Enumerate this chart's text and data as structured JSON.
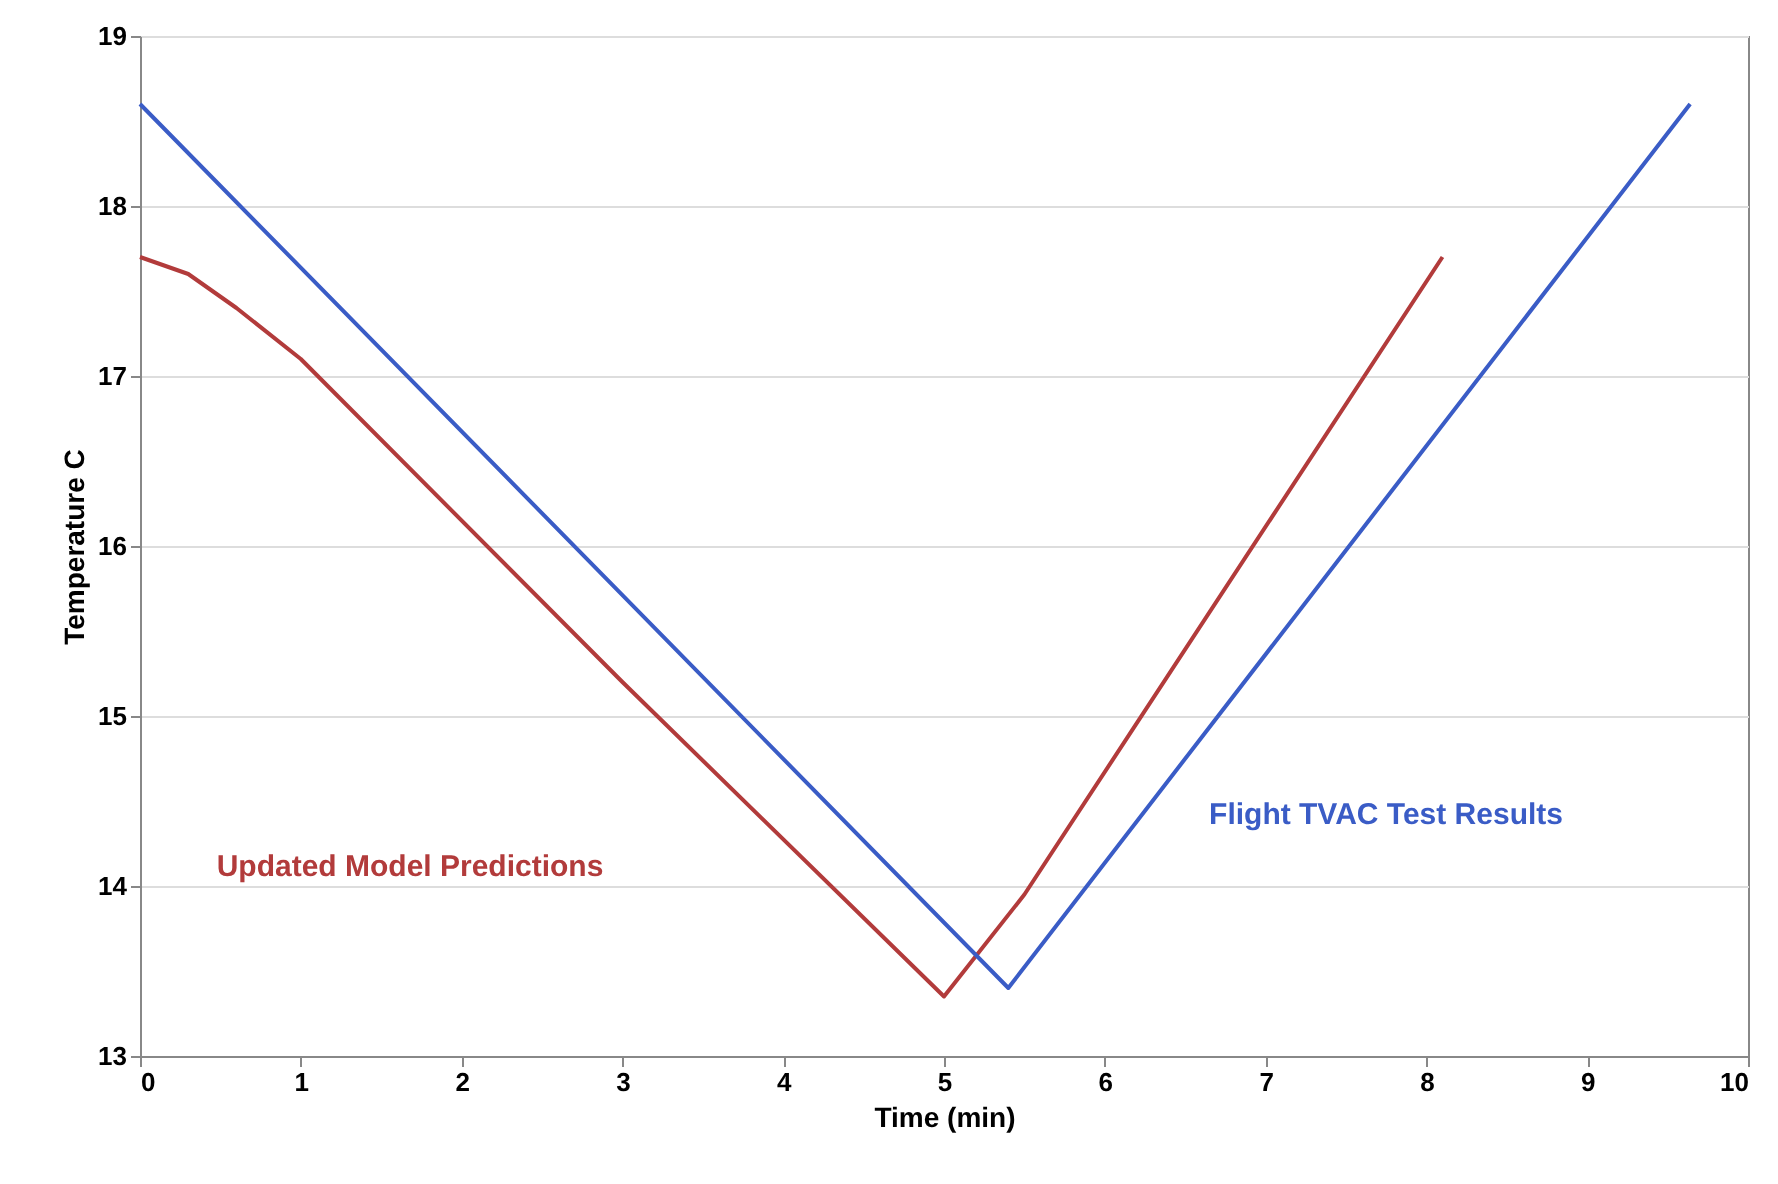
{
  "chart_data": {
    "type": "line",
    "xlabel": "Time (min)",
    "ylabel": "Temperature C",
    "xlim": [
      0,
      10
    ],
    "xticks": [
      0,
      1,
      2,
      3,
      4,
      5,
      6,
      7,
      8,
      9,
      10
    ],
    "ylim": [
      13,
      19
    ],
    "yticks": [
      13,
      14,
      15,
      16,
      17,
      18,
      19
    ],
    "grid": "y",
    "legend": false,
    "marker": "none",
    "line_style": "solid",
    "series": [
      {
        "name": "Updated Model Predictions",
        "color": "#b23b3b",
        "x": [
          0,
          0.3,
          0.6,
          1,
          3,
          5,
          5.5,
          8.1
        ],
        "values": [
          17.7,
          17.6,
          17.4,
          17.1,
          15.2,
          13.35,
          13.95,
          17.7
        ]
      },
      {
        "name": "Flight TVAC Test Results",
        "color": "#3a5cc6",
        "x": [
          0,
          5.4,
          9.64
        ],
        "values": [
          18.6,
          13.4,
          18.6
        ]
      }
    ]
  }
}
